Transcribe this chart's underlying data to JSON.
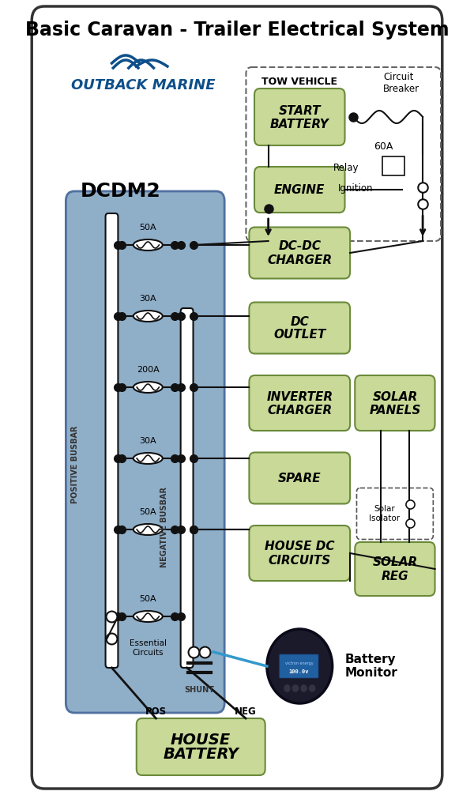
{
  "title": "Basic Caravan - Trailer Electrical System",
  "green_fill": "#c8d998",
  "green_edge": "#6a8a3a",
  "blue_fill": "#8faec8",
  "blue_edge": "#5070a0",
  "line_color": "#111111",
  "dcdm_label": "DCDM2",
  "pos_busbar": "POSITIVE BUSBAR",
  "neg_busbar": "NEGATIVE BUSBAR",
  "shunt_lbl": "SHUNT",
  "tow_vehicle_lbl": "TOW VEHICLE",
  "circuit_breaker_lbl": "Circuit\nBreaker",
  "relay_lbl": "Relay",
  "ignition_lbl": "Ignition",
  "amp60_lbl": "60A",
  "monitor_lbl": "Battery\nMonitor",
  "essential_lbl": "Essential\nCircuits",
  "pos_lbl": "POS",
  "neg_lbl": "NEG",
  "solar_isolator_lbl": "Solar\nIsolator",
  "outback_color": "#0d4f8a"
}
